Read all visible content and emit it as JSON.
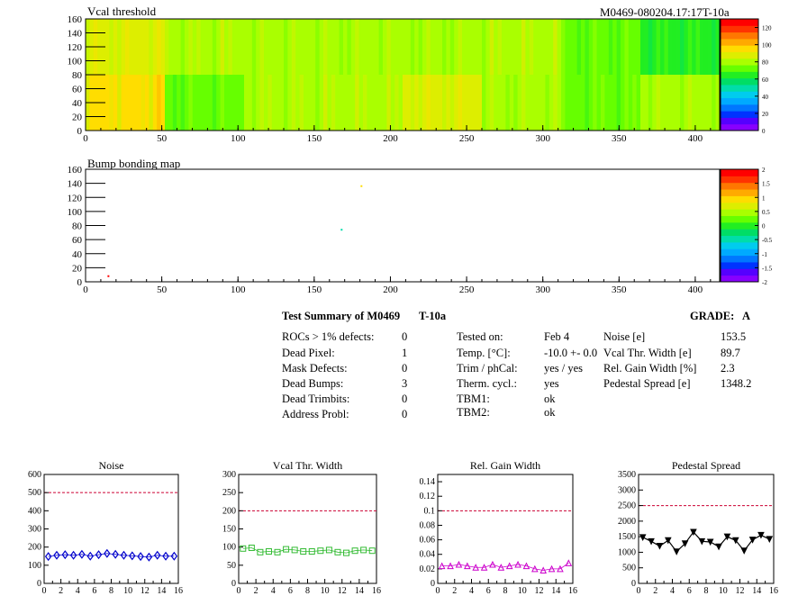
{
  "colors": {
    "page_bg": "#ffffff",
    "frame": "#000000",
    "dashed_limit": "#cc0033",
    "noise_series": "#0000cc",
    "vcal_width_series": "#33bb33",
    "gain_width_series": "#cc00cc",
    "pedestal_series": "#000000"
  },
  "header": {
    "module_tag": "M0469-080204.17:17T-10a"
  },
  "summary": {
    "title": "Test Summary of M0469",
    "temperature_tag": "T-10a",
    "grade_label": "GRADE:",
    "grade_value": "A",
    "defects": [
      {
        "label": "ROCs > 1% defects:",
        "value": "0"
      },
      {
        "label": "Dead Pixel:",
        "value": "1"
      },
      {
        "label": "Mask Defects:",
        "value": "0"
      },
      {
        "label": "Dead Bumps:",
        "value": "3"
      },
      {
        "label": "Dead Trimbits:",
        "value": "0"
      },
      {
        "label": "Address Probl:",
        "value": "0"
      }
    ],
    "conditions": [
      {
        "label": "Tested on:",
        "value": "Feb 4"
      },
      {
        "label": "Temp. [°C]:",
        "value": "-10.0 +- 0.0"
      },
      {
        "label": "Trim / phCal:",
        "value": "yes / yes"
      },
      {
        "label": "Therm. cycl.:",
        "value": "yes"
      },
      {
        "label": "TBM1:",
        "value": "ok"
      },
      {
        "label": "TBM2:",
        "value": "ok"
      }
    ],
    "results": [
      {
        "label": "Noise [e]",
        "value": "153.5"
      },
      {
        "label": "Vcal Thr. Width [e]",
        "value": "89.7"
      },
      {
        "label": "Rel. Gain Width [%]",
        "value": "2.3"
      },
      {
        "label": "Pedestal Spread [e]",
        "value": "1348.2"
      }
    ]
  },
  "chart_data": [
    {
      "type": "heatmap",
      "title": "Vcal threshold",
      "x_range": [
        0,
        416
      ],
      "y_range": [
        0,
        160
      ],
      "x_ticks": [
        0,
        50,
        100,
        150,
        200,
        250,
        300,
        350,
        400
      ],
      "y_ticks": [
        0,
        20,
        40,
        60,
        80,
        100,
        120,
        140,
        160
      ],
      "z_ticks": [
        "0",
        "20",
        "40",
        "60",
        "80",
        "100",
        "120"
      ],
      "z_range": [
        0,
        130
      ],
      "roc_cells": {
        "columns_per_roc": 52,
        "rows_per_roc": 80,
        "top_row_values": [
          88,
          82,
          82,
          78,
          80,
          84,
          72,
          66
        ],
        "bottom_row_values": [
          92,
          70,
          84,
          84,
          88,
          78,
          76,
          80
        ]
      }
    },
    {
      "type": "heatmap",
      "title": "Bump bonding map",
      "x_range": [
        0,
        416
      ],
      "y_range": [
        0,
        160
      ],
      "x_ticks": [
        0,
        50,
        100,
        150,
        200,
        250,
        300,
        350,
        400
      ],
      "y_ticks": [
        0,
        20,
        40,
        60,
        80,
        100,
        120,
        140,
        160
      ],
      "z_ticks": [
        "-2",
        "-1.5",
        "-1",
        "-0.5",
        "0",
        "0.5",
        "1",
        "1.5",
        "2"
      ],
      "z_range": [
        -2,
        2
      ],
      "points": [
        {
          "x": 15,
          "y": 8,
          "z": 2
        },
        {
          "x": 168,
          "y": 74,
          "z": -0.5
        },
        {
          "x": 181,
          "y": 136,
          "z": 1
        }
      ]
    },
    {
      "type": "scatter",
      "title": "Noise",
      "x_range": [
        0,
        16
      ],
      "y_range": [
        0,
        600
      ],
      "x_ticks": [
        0,
        2,
        4,
        6,
        8,
        10,
        12,
        14,
        16
      ],
      "y_ticks": [
        0,
        100,
        200,
        300,
        400,
        500,
        600
      ],
      "limit": 500,
      "marker": "diamond",
      "x": [
        0,
        1,
        2,
        3,
        4,
        5,
        6,
        7,
        8,
        9,
        10,
        11,
        12,
        13,
        14,
        15
      ],
      "y": [
        148,
        155,
        158,
        155,
        160,
        150,
        158,
        165,
        160,
        155,
        152,
        148,
        145,
        155,
        150,
        150
      ]
    },
    {
      "type": "scatter",
      "title": "Vcal Thr. Width",
      "x_range": [
        0,
        16
      ],
      "y_range": [
        0,
        300
      ],
      "x_ticks": [
        0,
        2,
        4,
        6,
        8,
        10,
        12,
        14,
        16
      ],
      "y_ticks": [
        0,
        50,
        100,
        150,
        200,
        250,
        300
      ],
      "limit": 200,
      "marker": "square",
      "x": [
        0,
        1,
        2,
        3,
        4,
        5,
        6,
        7,
        8,
        9,
        10,
        11,
        12,
        13,
        14,
        15
      ],
      "y": [
        96,
        98,
        86,
        88,
        86,
        94,
        92,
        88,
        88,
        90,
        92,
        86,
        84,
        90,
        92,
        90
      ]
    },
    {
      "type": "scatter",
      "title": "Rel. Gain Width",
      "x_range": [
        0,
        16
      ],
      "y_range": [
        0,
        0.15
      ],
      "x_ticks": [
        0,
        2,
        4,
        6,
        8,
        10,
        12,
        14,
        16
      ],
      "y_ticks": [
        "0",
        "0.02",
        "0.04",
        "0.06",
        "0.08",
        "0.1",
        "0.12",
        "0.14"
      ],
      "y_tick_values": [
        0,
        0.02,
        0.04,
        0.06,
        0.08,
        0.1,
        0.12,
        0.14
      ],
      "limit": 0.1,
      "marker": "triangle",
      "x": [
        0,
        1,
        2,
        3,
        4,
        5,
        6,
        7,
        8,
        9,
        10,
        11,
        12,
        13,
        14,
        15
      ],
      "y": [
        0.024,
        0.024,
        0.026,
        0.024,
        0.022,
        0.022,
        0.026,
        0.022,
        0.024,
        0.026,
        0.024,
        0.02,
        0.018,
        0.02,
        0.02,
        0.028
      ]
    },
    {
      "type": "line",
      "title": "Pedestal Spread",
      "x_range": [
        0,
        16
      ],
      "y_range": [
        0,
        3500
      ],
      "x_ticks": [
        0,
        2,
        4,
        6,
        8,
        10,
        12,
        14,
        16
      ],
      "y_ticks": [
        0,
        500,
        1000,
        1500,
        2000,
        2500,
        3000,
        3500
      ],
      "limit": 2500,
      "marker": "triangle-down",
      "x": [
        0,
        1,
        2,
        3,
        4,
        5,
        6,
        7,
        8,
        9,
        10,
        11,
        12,
        13,
        14,
        15
      ],
      "y": [
        1480,
        1350,
        1200,
        1380,
        1020,
        1280,
        1650,
        1350,
        1330,
        1180,
        1500,
        1380,
        1050,
        1400,
        1550,
        1420
      ]
    }
  ]
}
